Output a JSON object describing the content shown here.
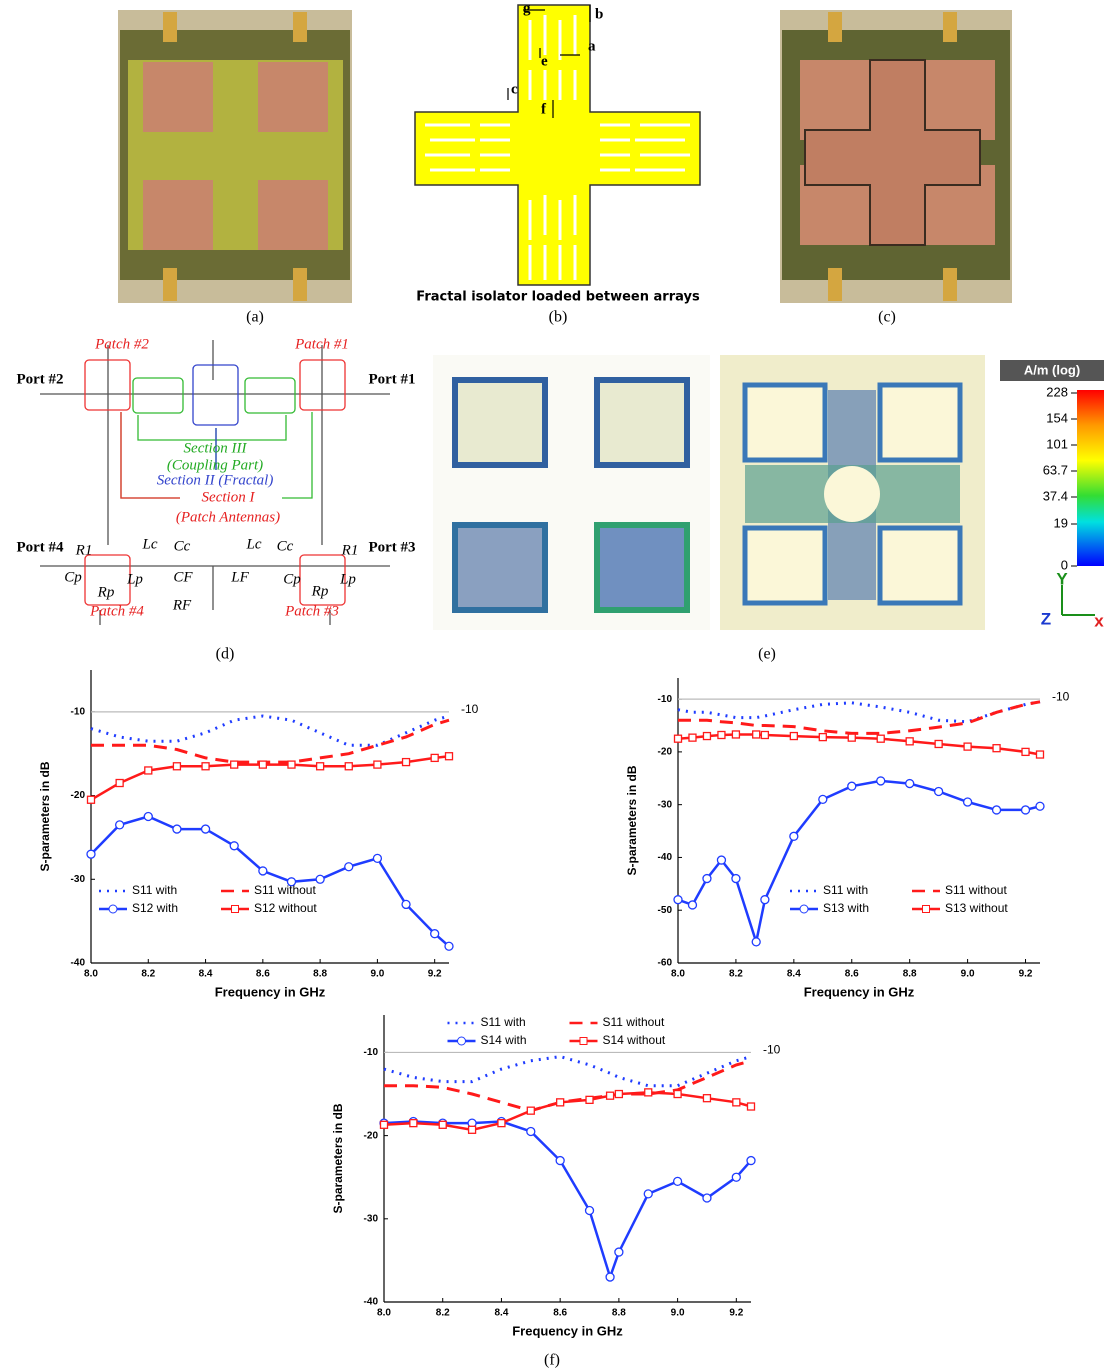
{
  "panel_labels": [
    "(a)",
    "(b)",
    "(c)",
    "(d)",
    "(e)",
    "(f)"
  ],
  "isolator": {
    "dimension_labels": [
      "g",
      "b",
      "a",
      "e",
      "c",
      "f"
    ],
    "caption": "Fractal isolator loaded between arrays"
  },
  "circuit": {
    "labels": [
      "Patch #2",
      "Patch #1",
      "Port #2",
      "Port #1",
      "Section III",
      "(Coupling Part)",
      "Section II (Fractal)",
      "Section I",
      "(Patch Antennas)",
      "Port #4",
      "Port #3",
      "R1",
      "Lc",
      "Cc",
      "Lc",
      "Cc",
      "R1",
      "Cp",
      "Rp",
      "Lp",
      "CF",
      "LF",
      "RF",
      "Cp",
      "Rp",
      "Lp",
      "Patch #4",
      "Patch #3"
    ]
  },
  "field_plot": {
    "unit": "A/m (log)",
    "ticks": [
      228,
      154,
      101,
      63.7,
      37.4,
      19,
      0
    ],
    "axes": [
      "Y",
      "Z",
      "x"
    ]
  },
  "chart_data": [
    {
      "type": "line",
      "x_label": "Frequency in GHz",
      "y_label": "S-parameters in dB",
      "x": [
        8.0,
        8.1,
        8.2,
        8.3,
        8.4,
        8.5,
        8.6,
        8.7,
        8.8,
        8.9,
        9.0,
        9.1,
        9.2,
        9.25
      ],
      "xlim": [
        8.0,
        9.25
      ],
      "xticks": [
        {
          "value": 8.0,
          "label": "8.0"
        },
        8.2,
        8.4,
        8.6,
        8.8,
        {
          "value": 9.0,
          "label": "9.0"
        },
        9.2
      ],
      "ylim": [
        -40,
        -5
      ],
      "yticks": [
        -40,
        -30,
        -20,
        -10
      ],
      "reference_line": -10,
      "legend": "lower left",
      "series": [
        {
          "name": "S11 with",
          "color": "#1f3cff",
          "style": "dotted",
          "marker": null,
          "values": [
            -12,
            -13,
            -13.5,
            -13.5,
            -12.5,
            -11,
            -10.5,
            -11,
            -12.5,
            -14,
            -14,
            -12.5,
            -11,
            -10.5
          ]
        },
        {
          "name": "S11 without",
          "color": "#ff1a1a",
          "style": "dashed",
          "marker": null,
          "values": [
            -14,
            -14,
            -14,
            -14.5,
            -15.5,
            -16,
            -16,
            -16,
            -15.5,
            -15,
            -14,
            -13,
            -11.5,
            -11
          ]
        },
        {
          "name": "S12 with",
          "color": "#1f3cff",
          "style": "solid",
          "marker": "circle",
          "values": [
            -27,
            -23.5,
            -22.5,
            -24,
            -24,
            -26,
            -29,
            -30.3,
            -30,
            -28.5,
            -27.5,
            -33,
            -36.5,
            -38
          ]
        },
        {
          "name": "S12 without",
          "color": "#ff1a1a",
          "style": "solid",
          "marker": "square",
          "values": [
            -20.5,
            -18.5,
            -17,
            -16.5,
            -16.5,
            -16.3,
            -16.3,
            -16.3,
            -16.5,
            -16.5,
            -16.3,
            -16,
            -15.5,
            -15.3
          ]
        }
      ]
    },
    {
      "type": "line",
      "x_label": "Frequency in GHz",
      "y_label": "S-parameters in dB",
      "x": [
        8.0,
        8.05,
        8.1,
        8.15,
        8.2,
        8.27,
        8.3,
        8.4,
        8.5,
        8.6,
        8.7,
        8.8,
        8.9,
        9.0,
        9.1,
        9.2,
        9.25
      ],
      "xlim": [
        8.0,
        9.25
      ],
      "xticks": [
        {
          "value": 8.0,
          "label": "8.0"
        },
        8.2,
        8.4,
        8.6,
        8.8,
        {
          "value": 9.0,
          "label": "9.0"
        },
        9.2
      ],
      "ylim": [
        -60,
        -6
      ],
      "yticks": [
        -60,
        -50,
        -40,
        -30,
        -20,
        -10
      ],
      "reference_line": -10,
      "legend": "lower right",
      "series": [
        {
          "name": "S11 with",
          "color": "#1f3cff",
          "style": "dotted",
          "marker": null,
          "values": [
            -12,
            -12.5,
            -12.5,
            -13,
            -13.5,
            -13.5,
            -13.2,
            -12,
            -11,
            -10.7,
            -11.5,
            -12.5,
            -14,
            -14.3,
            -12.5,
            -11,
            -10.5
          ]
        },
        {
          "name": "S11 without",
          "color": "#ff1a1a",
          "style": "dashed",
          "marker": null,
          "values": [
            -14,
            -14,
            -14,
            -14.3,
            -14.5,
            -15,
            -15,
            -15.2,
            -16,
            -16.5,
            -16.5,
            -16,
            -15.3,
            -14.5,
            -12.5,
            -11,
            -10.5
          ]
        },
        {
          "name": "S13 with",
          "color": "#1f3cff",
          "style": "solid",
          "marker": "circle",
          "values": [
            -48,
            -49,
            -44,
            -40.5,
            -44,
            -56,
            -48,
            -36,
            -29,
            -26.5,
            -25.5,
            -26,
            -27.5,
            -29.5,
            -31,
            -31,
            -30.3
          ]
        },
        {
          "name": "S13 without",
          "color": "#ff1a1a",
          "style": "solid",
          "marker": "square",
          "values": [
            -17.5,
            -17.3,
            -17,
            -16.8,
            -16.7,
            -16.7,
            -16.8,
            -17,
            -17.2,
            -17.3,
            -17.5,
            -18,
            -18.5,
            -19,
            -19.3,
            -20,
            -20.5
          ]
        }
      ]
    },
    {
      "type": "line",
      "x_label": "Frequency in GHz",
      "y_label": "S-parameters in dB",
      "x": [
        8.0,
        8.1,
        8.2,
        8.3,
        8.4,
        8.5,
        8.6,
        8.7,
        8.77,
        8.8,
        8.9,
        9.0,
        9.1,
        9.2,
        9.25
      ],
      "xlim": [
        8.0,
        9.25
      ],
      "xticks": [
        {
          "value": 8.0,
          "label": "8.0"
        },
        8.2,
        8.4,
        8.6,
        8.8,
        {
          "value": 9.0,
          "label": "9.0"
        },
        9.2
      ],
      "ylim": [
        -40,
        -5.5
      ],
      "yticks": [
        -40,
        -30,
        -20,
        -10
      ],
      "reference_line": -10,
      "legend": "upper center",
      "series": [
        {
          "name": "S11 with",
          "color": "#1f3cff",
          "style": "dotted",
          "marker": null,
          "values": [
            -12,
            -13,
            -13.5,
            -13.5,
            -12,
            -11,
            -10.5,
            -11.5,
            -12.5,
            -13,
            -14,
            -14,
            -12.5,
            -11,
            -10.5
          ]
        },
        {
          "name": "S11 without",
          "color": "#ff1a1a",
          "style": "dashed",
          "marker": null,
          "values": [
            -14,
            -14,
            -14.2,
            -15,
            -16,
            -17,
            -16,
            -15.5,
            -15.2,
            -15,
            -15,
            -14.5,
            -13,
            -11.5,
            -11
          ]
        },
        {
          "name": "S14 with",
          "color": "#1f3cff",
          "style": "solid",
          "marker": "circle",
          "values": [
            -18.5,
            -18.3,
            -18.5,
            -18.5,
            -18.3,
            -19.5,
            -23,
            -29,
            -37,
            -34,
            -27,
            -25.5,
            -27.5,
            -25,
            -23
          ]
        },
        {
          "name": "S14 without",
          "color": "#ff1a1a",
          "style": "solid",
          "marker": "square",
          "values": [
            -18.7,
            -18.5,
            -18.7,
            -19.3,
            -18.5,
            -17,
            -16,
            -15.7,
            -15.2,
            -15,
            -14.8,
            -15,
            -15.5,
            -16,
            -16.5
          ]
        }
      ]
    }
  ]
}
